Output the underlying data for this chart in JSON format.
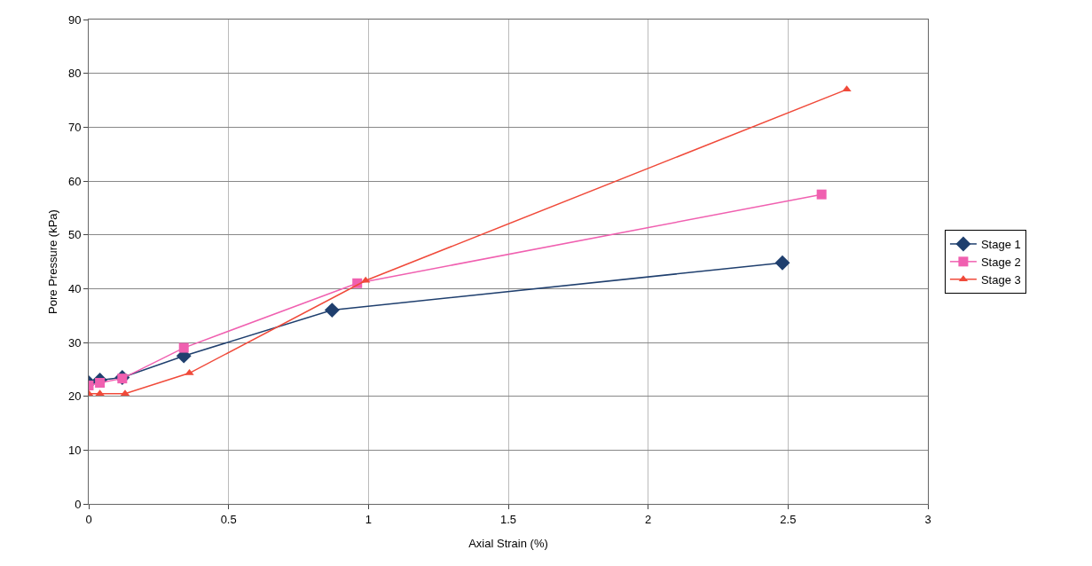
{
  "chart_data": {
    "type": "line",
    "xlabel": "Axial Strain (%)",
    "ylabel": "Pore Pressure (kPa)",
    "xlim": [
      0,
      3
    ],
    "xticks": [
      0,
      0.5,
      1,
      1.5,
      2,
      2.5,
      3
    ],
    "ylim": [
      0,
      90
    ],
    "yticks": [
      0,
      10,
      20,
      30,
      40,
      50,
      60,
      70,
      80,
      90
    ],
    "grid": true,
    "legend": "right",
    "line_style": "solid",
    "series": [
      {
        "name": "Stage 1",
        "color": "#1f3f6e",
        "marker": "diamond",
        "x": [
          0,
          0.04,
          0.12,
          0.34,
          0.87,
          2.48
        ],
        "values": [
          22.5,
          23,
          23.5,
          27.5,
          36,
          44.8
        ]
      },
      {
        "name": "Stage 2",
        "color": "#f060b0",
        "marker": "square",
        "x": [
          0,
          0.04,
          0.12,
          0.34,
          0.96,
          2.62
        ],
        "values": [
          22,
          22.5,
          23.3,
          29,
          41,
          57.5
        ]
      },
      {
        "name": "Stage 3",
        "color": "#f04a3a",
        "marker": "triangle",
        "x": [
          0,
          0.04,
          0.13,
          0.36,
          0.99,
          2.71
        ],
        "values": [
          20.5,
          20.5,
          20.5,
          24.3,
          41.5,
          77
        ]
      }
    ]
  }
}
